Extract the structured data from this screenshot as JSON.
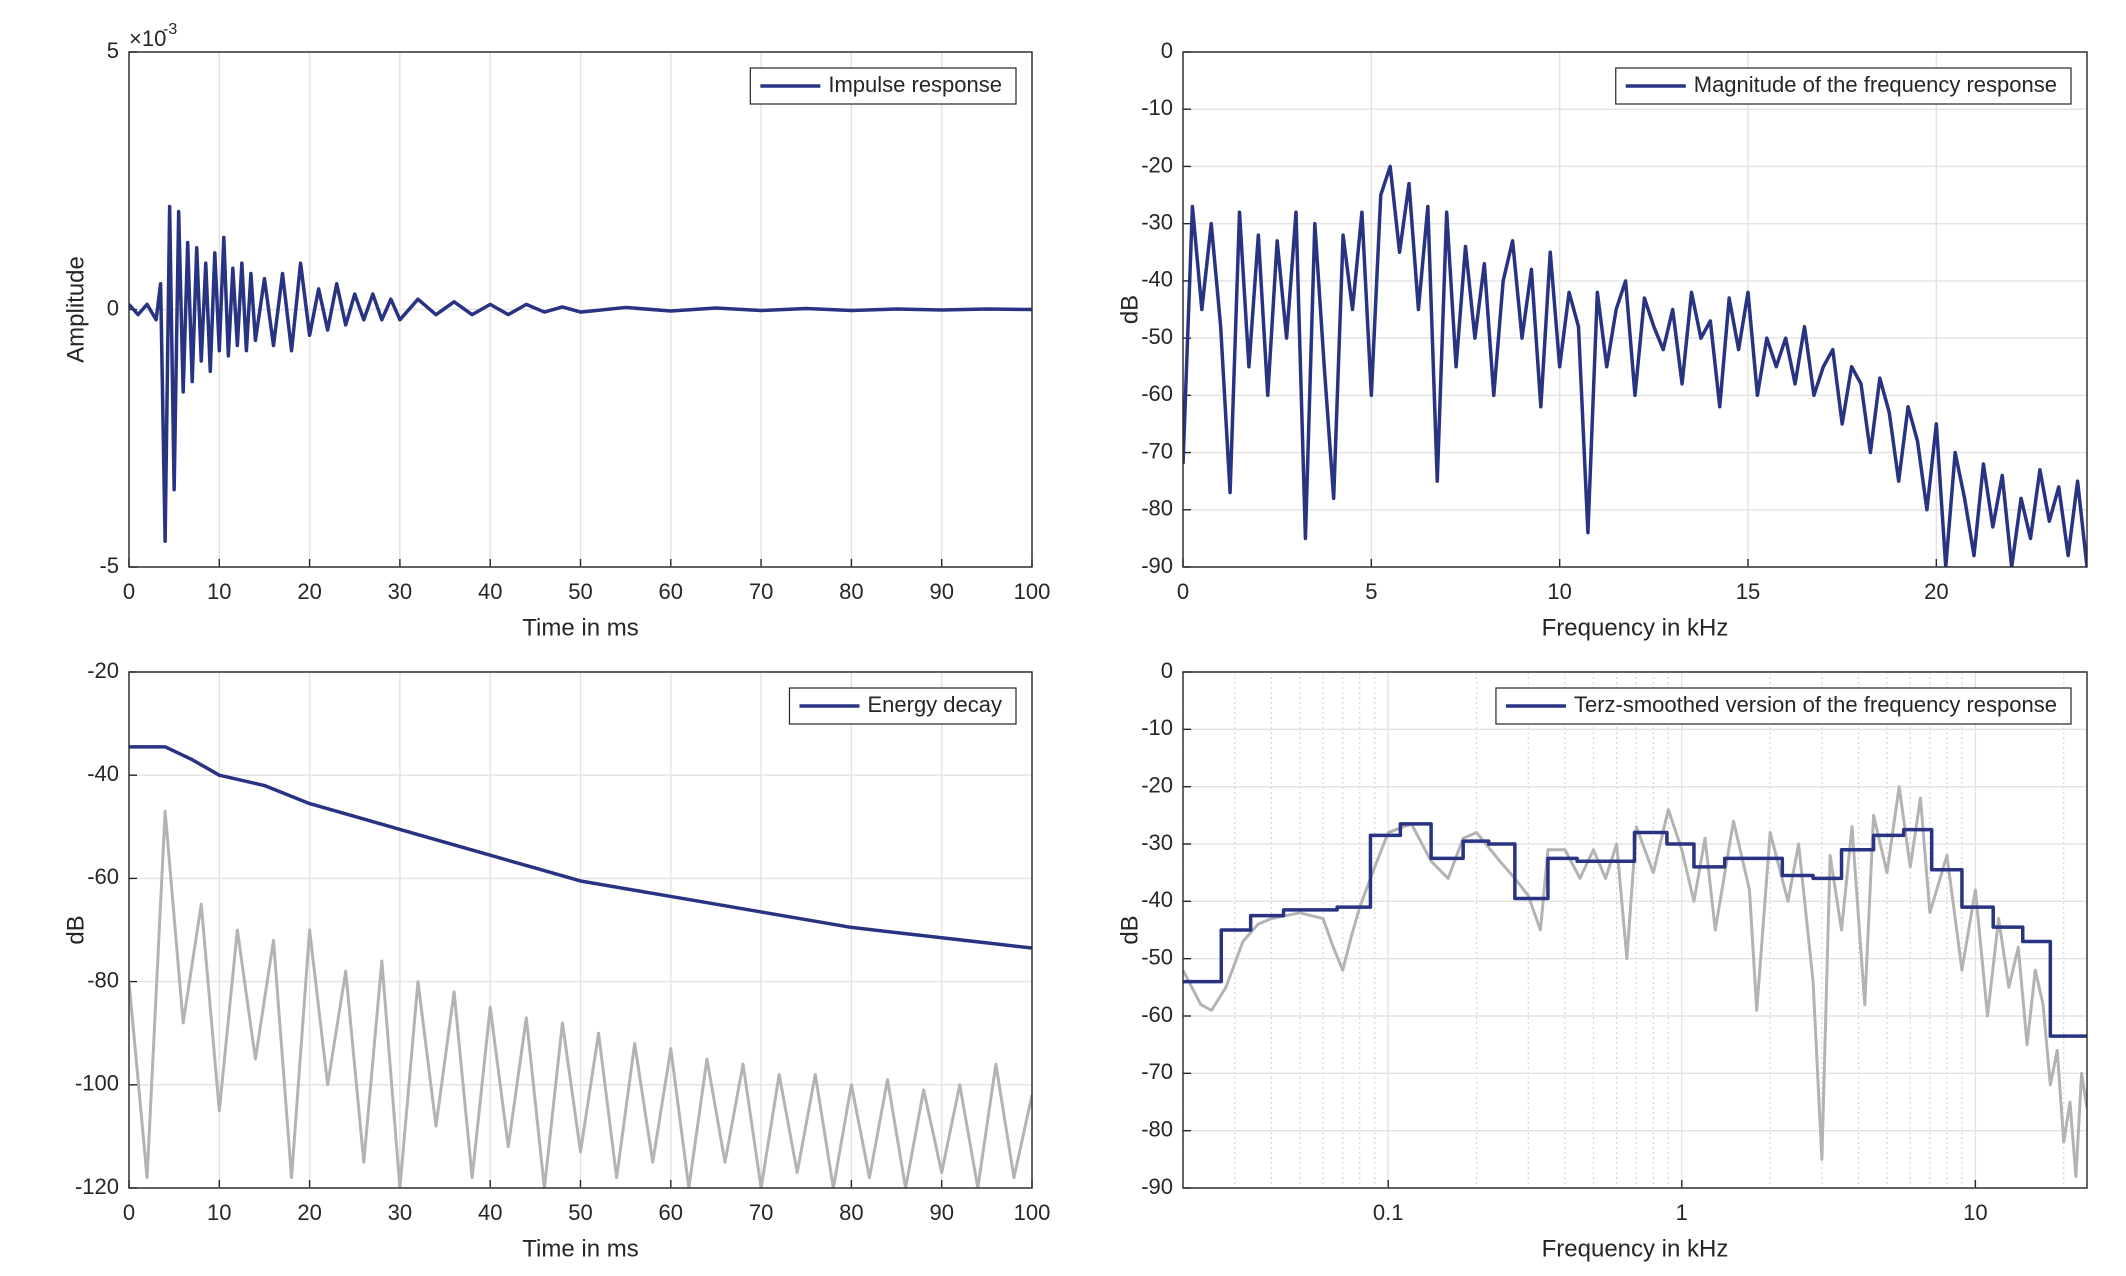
{
  "chart_data": [
    {
      "type": "line",
      "xlabel": "Time in ms",
      "ylabel": "Amplitude",
      "y_scale_base": "×10",
      "y_scale_exponent": "-3",
      "xlim": [
        0,
        100
      ],
      "xticks": [
        0,
        10,
        20,
        30,
        40,
        50,
        60,
        70,
        80,
        90,
        100
      ],
      "ylim": [
        -0.005,
        0.005
      ],
      "yticks": [
        {
          "value": -0.005,
          "label": "-5"
        },
        0,
        {
          "value": 0.005,
          "label": "5"
        }
      ],
      "grid": true,
      "legend": "upper right",
      "series": [
        {
          "name": "Impulse response",
          "color": "#283382",
          "x": [
            0,
            1,
            2,
            3,
            3.5,
            4,
            4.5,
            5,
            5.5,
            6,
            6.5,
            7,
            7.5,
            8,
            8.5,
            9,
            9.5,
            10,
            10.5,
            11,
            11.5,
            12,
            12.5,
            13,
            13.5,
            14,
            15,
            16,
            17,
            18,
            19,
            20,
            21,
            22,
            23,
            24,
            25,
            26,
            27,
            28,
            29,
            30,
            32,
            34,
            36,
            38,
            40,
            42,
            44,
            46,
            48,
            50,
            55,
            60,
            65,
            70,
            75,
            80,
            85,
            90,
            95,
            100
          ],
          "values": [
            0.0001,
            -0.0001,
            0.0001,
            -0.0002,
            0.0005,
            -0.0045,
            0.002,
            -0.0035,
            0.0019,
            -0.0016,
            0.0013,
            -0.0014,
            0.0012,
            -0.001,
            0.0009,
            -0.0012,
            0.0011,
            -0.0008,
            0.0014,
            -0.0009,
            0.0008,
            -0.0007,
            0.0009,
            -0.0008,
            0.0007,
            -0.0006,
            0.0006,
            -0.0007,
            0.0007,
            -0.0008,
            0.0009,
            -0.0005,
            0.0004,
            -0.0004,
            0.0005,
            -0.0003,
            0.0003,
            -0.0002,
            0.0003,
            -0.0002,
            0.0002,
            -0.0002,
            0.0002,
            -0.0001,
            0.00015,
            -0.0001,
            0.0001,
            -0.0001,
            0.0001,
            -5e-05,
            5e-05,
            -5e-05,
            4e-05,
            -3e-05,
            3e-05,
            -2e-05,
            2e-05,
            -2e-05,
            1e-05,
            -1e-05,
            1e-05,
            0
          ]
        }
      ]
    },
    {
      "type": "line",
      "xlabel": "Frequency in kHz",
      "ylabel": "dB",
      "xlim": [
        0,
        24
      ],
      "xticks": [
        0,
        5,
        10,
        15,
        20
      ],
      "ylim": [
        -90,
        0
      ],
      "yticks": [
        0,
        -10,
        -20,
        -30,
        -40,
        -50,
        -60,
        -70,
        -80,
        -90
      ],
      "grid": true,
      "legend": "upper right",
      "series": [
        {
          "name": "Magnitude of the frequency response",
          "color": "#283382",
          "x": [
            0,
            0.25,
            0.5,
            0.75,
            1,
            1.25,
            1.5,
            1.75,
            2,
            2.25,
            2.5,
            2.75,
            3,
            3.25,
            3.5,
            3.75,
            4,
            4.25,
            4.5,
            4.75,
            5,
            5.25,
            5.5,
            5.75,
            6,
            6.25,
            6.5,
            6.75,
            7,
            7.25,
            7.5,
            7.75,
            8,
            8.25,
            8.5,
            8.75,
            9,
            9.25,
            9.5,
            9.75,
            10,
            10.25,
            10.5,
            10.75,
            11,
            11.25,
            11.5,
            11.75,
            12,
            12.25,
            12.5,
            12.75,
            13,
            13.25,
            13.5,
            13.75,
            14,
            14.25,
            14.5,
            14.75,
            15,
            15.25,
            15.5,
            15.75,
            16,
            16.25,
            16.5,
            16.75,
            17,
            17.25,
            17.5,
            17.75,
            18,
            18.25,
            18.5,
            18.75,
            19,
            19.25,
            19.5,
            19.75,
            20,
            20.25,
            20.5,
            20.75,
            21,
            21.25,
            21.5,
            21.75,
            22,
            22.25,
            22.5,
            22.75,
            23,
            23.25,
            23.5,
            23.75,
            24
          ],
          "values": [
            -72,
            -27,
            -45,
            -30,
            -48,
            -77,
            -28,
            -55,
            -32,
            -60,
            -33,
            -50,
            -28,
            -85,
            -30,
            -55,
            -78,
            -32,
            -45,
            -28,
            -60,
            -25,
            -20,
            -35,
            -23,
            -45,
            -27,
            -75,
            -28,
            -55,
            -34,
            -50,
            -37,
            -60,
            -40,
            -33,
            -50,
            -38,
            -62,
            -35,
            -55,
            -42,
            -48,
            -84,
            -42,
            -55,
            -45,
            -40,
            -60,
            -43,
            -48,
            -52,
            -45,
            -58,
            -42,
            -50,
            -47,
            -62,
            -43,
            -52,
            -42,
            -60,
            -50,
            -55,
            -50,
            -58,
            -48,
            -60,
            -55,
            -52,
            -65,
            -55,
            -58,
            -70,
            -57,
            -63,
            -75,
            -62,
            -68,
            -80,
            -65,
            -90,
            -70,
            -78,
            -88,
            -72,
            -83,
            -74,
            -90,
            -78,
            -85,
            -73,
            -82,
            -76,
            -88,
            -75,
            -90
          ]
        }
      ]
    },
    {
      "type": "line",
      "xlabel": "Time in ms",
      "ylabel": "dB",
      "xlim": [
        0,
        100
      ],
      "xticks": [
        0,
        10,
        20,
        30,
        40,
        50,
        60,
        70,
        80,
        90,
        100
      ],
      "ylim": [
        -120,
        -20
      ],
      "yticks": [
        -120,
        -100,
        -80,
        -60,
        -40,
        -20
      ],
      "grid": true,
      "legend": "upper right",
      "series": [
        {
          "color": "#b3b3b3",
          "x": [
            0,
            2,
            4,
            6,
            8,
            10,
            12,
            14,
            16,
            18,
            20,
            22,
            24,
            26,
            28,
            30,
            32,
            34,
            36,
            38,
            40,
            42,
            44,
            46,
            48,
            50,
            52,
            54,
            56,
            58,
            60,
            62,
            64,
            66,
            68,
            70,
            72,
            74,
            76,
            78,
            80,
            82,
            84,
            86,
            88,
            90,
            92,
            94,
            96,
            98,
            100
          ],
          "values": [
            -80,
            -118,
            -47,
            -88,
            -65,
            -105,
            -70,
            -95,
            -72,
            -118,
            -70,
            -100,
            -78,
            -115,
            -76,
            -120,
            -80,
            -108,
            -82,
            -118,
            -85,
            -112,
            -87,
            -120,
            -88,
            -113,
            -90,
            -118,
            -92,
            -115,
            -93,
            -120,
            -95,
            -115,
            -96,
            -120,
            -98,
            -117,
            -98,
            -120,
            -100,
            -118,
            -99,
            -120,
            -101,
            -117,
            -100,
            -120,
            -96,
            -118,
            -102
          ]
        },
        {
          "name": "Energy decay",
          "color": "#283382",
          "x": [
            0,
            4,
            7,
            10,
            15,
            20,
            25,
            30,
            35,
            40,
            45,
            50,
            55,
            60,
            65,
            70,
            75,
            80,
            85,
            90,
            95,
            100
          ],
          "values": [
            -34.5,
            -34.5,
            -37,
            -40,
            -42,
            -45.5,
            -48,
            -50.5,
            -53,
            -55.5,
            -58,
            -60.5,
            -62,
            -63.5,
            -65,
            -66.5,
            -68,
            -69.5,
            -70.5,
            -71.5,
            -72.5,
            -73.5
          ]
        }
      ]
    },
    {
      "type": "line",
      "xlabel": "Frequency in kHz",
      "ylabel": "dB",
      "xlog": true,
      "xlim": [
        0.02,
        24
      ],
      "xticks": [
        0.1,
        1,
        10
      ],
      "minor_xticks": [
        0.02,
        0.03,
        0.04,
        0.05,
        0.06,
        0.07,
        0.08,
        0.09,
        0.2,
        0.3,
        0.4,
        0.5,
        0.6,
        0.7,
        0.8,
        0.9,
        2,
        3,
        4,
        5,
        6,
        7,
        8,
        9,
        20
      ],
      "ylim": [
        -90,
        0
      ],
      "yticks": [
        0,
        -10,
        -20,
        -30,
        -40,
        -50,
        -60,
        -70,
        -80,
        -90
      ],
      "grid": true,
      "legend": "upper right",
      "series": [
        {
          "color": "#b3b3b3",
          "x": [
            0.02,
            0.023,
            0.025,
            0.028,
            0.032,
            0.036,
            0.04,
            0.05,
            0.06,
            0.065,
            0.07,
            0.075,
            0.08,
            0.09,
            0.1,
            0.12,
            0.14,
            0.16,
            0.18,
            0.2,
            0.24,
            0.27,
            0.3,
            0.33,
            0.35,
            0.4,
            0.45,
            0.5,
            0.55,
            0.6,
            0.65,
            0.7,
            0.8,
            0.9,
            1,
            1.1,
            1.2,
            1.3,
            1.5,
            1.7,
            1.8,
            2,
            2.3,
            2.5,
            2.8,
            3,
            3.2,
            3.5,
            3.8,
            4.2,
            4.5,
            5,
            5.5,
            6,
            6.5,
            7,
            8,
            9,
            10,
            11,
            12,
            13,
            14,
            15,
            16,
            17,
            18,
            19,
            20,
            21,
            22,
            23,
            24
          ],
          "values": [
            -52,
            -58,
            -59,
            -55,
            -47,
            -44,
            -43,
            -42,
            -43,
            -48,
            -52,
            -46,
            -41,
            -34,
            -28,
            -26.5,
            -33,
            -36,
            -29,
            -28,
            -33,
            -36,
            -39,
            -45,
            -31,
            -31,
            -36,
            -31,
            -36,
            -30,
            -50,
            -27,
            -35,
            -24,
            -31,
            -40,
            -29,
            -45,
            -26,
            -38,
            -59,
            -28,
            -40,
            -30,
            -54,
            -85,
            -32,
            -45,
            -27,
            -58,
            -25,
            -35,
            -20,
            -34,
            -22,
            -42,
            -32,
            -52,
            -38,
            -60,
            -43,
            -55,
            -48,
            -65,
            -52,
            -58,
            -72,
            -66,
            -82,
            -75,
            -88,
            -70,
            -76
          ]
        },
        {
          "name": "Terz-smoothed version of the frequency response",
          "color": "#283382",
          "bins": [
            0.02,
            0.027,
            0.034,
            0.044,
            0.067,
            0.087,
            0.11,
            0.14,
            0.18,
            0.22,
            0.27,
            0.35,
            0.44,
            0.56,
            0.69,
            0.89,
            1.1,
            1.4,
            1.8,
            2.2,
            2.8,
            3.5,
            4.5,
            5.7,
            7.1,
            9,
            11.5,
            14.5,
            18,
            24
          ],
          "values": [
            -54,
            -45,
            -42.5,
            -41.5,
            -41,
            -28.5,
            -26.5,
            -32.5,
            -29.5,
            -30,
            -39.5,
            -32.5,
            -33,
            -33,
            -28,
            -30,
            -34,
            -32.5,
            -32.5,
            -35.5,
            -36,
            -31,
            -28.5,
            -27.5,
            -34.5,
            -41,
            -44.5,
            -47,
            -63.5
          ]
        }
      ]
    }
  ]
}
